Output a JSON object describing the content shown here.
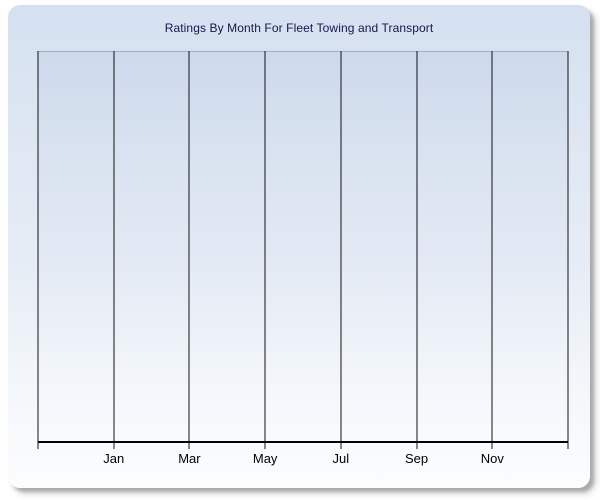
{
  "chart": {
    "title": "Ratings By Month For Fleet Towing and Transport"
  },
  "colors": {
    "page_background": "#ffffff",
    "panel_gradient_top": "#d5e1f1",
    "panel_gradient_bottom": "#fbfcfe",
    "plot_gradient_top": "#cddaec",
    "plot_gradient_bottom": "#f9fbfd",
    "plot_top_border": "#a6adbd",
    "gridline": "#121212",
    "axis_line": "#000000",
    "title_text": "#15154d",
    "tick_label_text": "#000000"
  },
  "chart_data": {
    "type": "line",
    "title": "Ratings By Month For Fleet Towing and Transport",
    "xlabel": "",
    "ylabel": "",
    "x_tick_labels": [
      "Jan",
      "Mar",
      "May",
      "Jul",
      "Sep",
      "Nov"
    ],
    "x_axis_intervals": 7,
    "gridline_count": 8,
    "grid": "vertical-only",
    "legend": "none",
    "series": [],
    "values": [],
    "plot_state": "empty - no data series rendered"
  }
}
